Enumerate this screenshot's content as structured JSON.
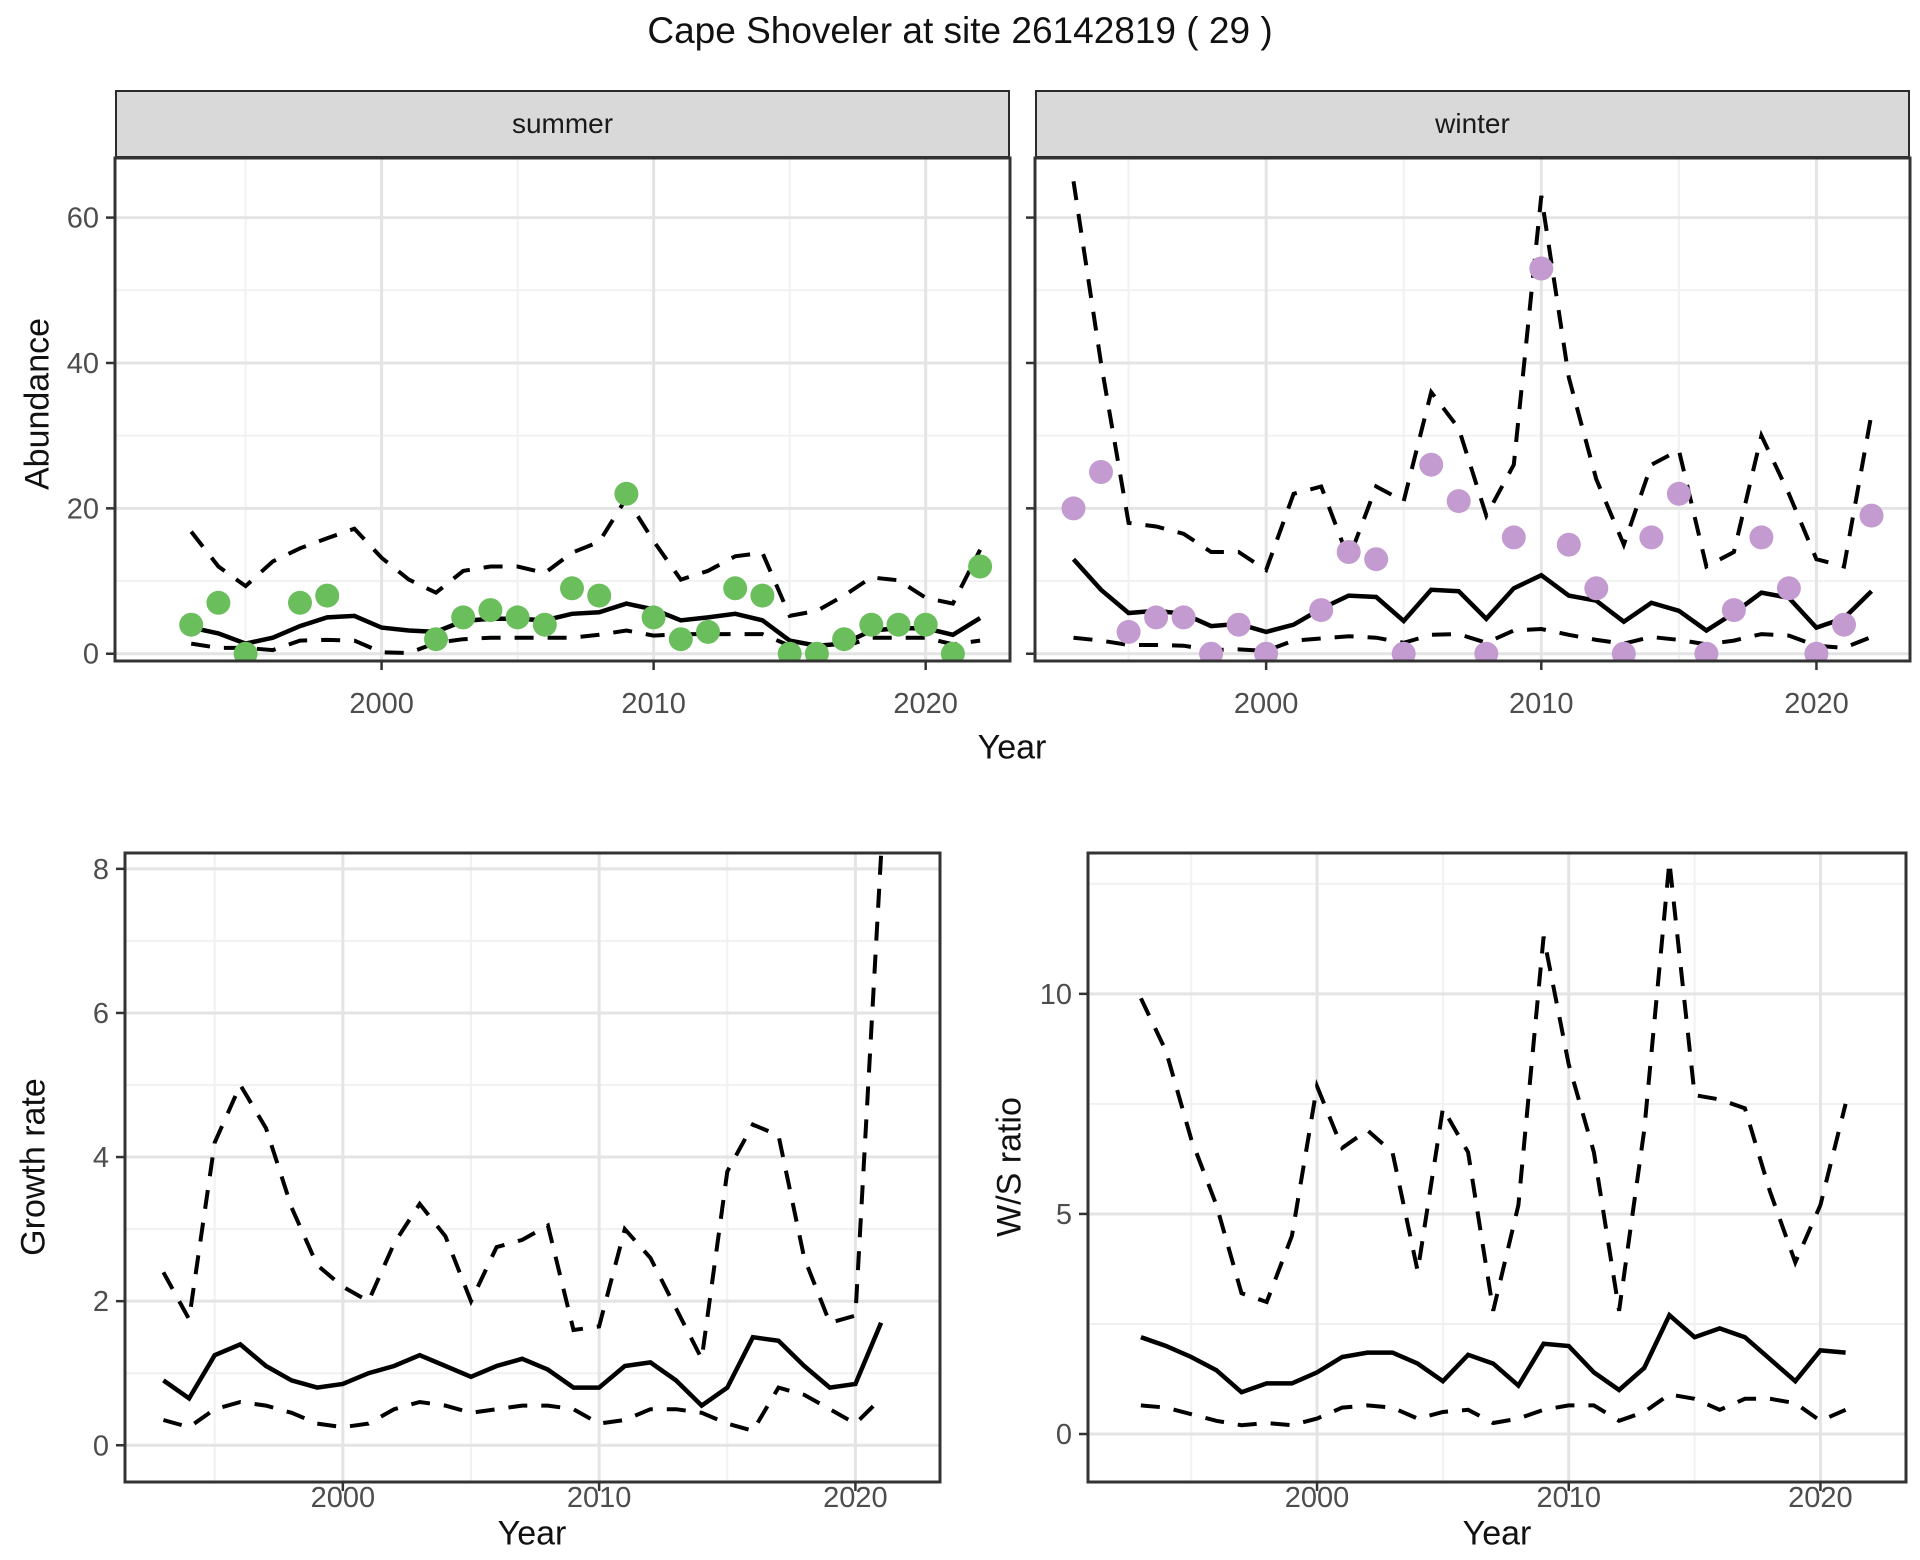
{
  "title": "Cape Shoveler at site 26142819 ( 29 )",
  "colors": {
    "summer_point": "#6BBE5C",
    "winter_point": "#C49BD0",
    "line": "#000000",
    "strip_bg": "#D9D9D9",
    "panel_border": "#333333",
    "grid_major": "#E4E4E4",
    "grid_minor": "#F1F1F1",
    "tick_text": "#4D4D4D"
  },
  "shared": {
    "top_xlabel": "Year"
  },
  "chart_data": [
    {
      "id": "abundance-summer",
      "type": "line",
      "facet_label": "summer",
      "ylabel": "Abundance",
      "xlabel": "Year",
      "x_ticks": [
        2000,
        2010,
        2020
      ],
      "x_minor": [
        1995,
        2005,
        2015
      ],
      "y_ticks": [
        0,
        20,
        40,
        60
      ],
      "y_minor": [
        10,
        30,
        50
      ],
      "xlim": [
        1990.2,
        2023.1
      ],
      "ylim": [
        -1.0,
        68.2
      ],
      "points": {
        "years": [
          1993,
          1994,
          1995,
          1997,
          1998,
          2002,
          2003,
          2004,
          2005,
          2006,
          2007,
          2008,
          2009,
          2010,
          2011,
          2012,
          2013,
          2014,
          2015,
          2016,
          2017,
          2018,
          2019,
          2020,
          2021,
          2022
        ],
        "values": [
          4,
          7,
          0,
          7,
          8,
          2,
          5,
          6,
          5,
          4,
          9,
          8,
          22,
          5,
          2,
          3,
          9,
          8,
          0,
          0,
          2,
          4,
          4,
          4,
          0,
          12
        ]
      },
      "fit": {
        "years": [
          1993,
          1994,
          1995,
          1996,
          1997,
          1998,
          1999,
          2000,
          2001,
          2002,
          2003,
          2004,
          2005,
          2006,
          2007,
          2008,
          2009,
          2010,
          2011,
          2012,
          2013,
          2014,
          2015,
          2016,
          2017,
          2018,
          2019,
          2020,
          2021,
          2022
        ],
        "values": [
          3.6,
          2.8,
          1.4,
          2.2,
          3.8,
          5.0,
          5.2,
          3.6,
          3.2,
          3.0,
          4.5,
          4.8,
          4.8,
          4.6,
          5.5,
          5.7,
          6.9,
          6.1,
          4.6,
          5.0,
          5.5,
          4.6,
          1.8,
          1.1,
          1.4,
          3.2,
          3.5,
          3.5,
          2.6,
          4.9
        ]
      },
      "upper": {
        "years": [
          1993,
          1994,
          1995,
          1996,
          1997,
          1998,
          1999,
          2000,
          2001,
          2002,
          2003,
          2004,
          2005,
          2006,
          2007,
          2008,
          2009,
          2010,
          2011,
          2012,
          2013,
          2014,
          2015,
          2016,
          2017,
          2018,
          2019,
          2020,
          2021,
          2022
        ],
        "values": [
          16.8,
          12,
          9.3,
          12.7,
          14.5,
          15.9,
          17.2,
          13.2,
          10.2,
          8.4,
          11.4,
          12,
          12,
          11.1,
          13.9,
          15.4,
          21.4,
          15.5,
          10.2,
          11.4,
          13.4,
          13.9,
          5.2,
          5.9,
          8.0,
          10.5,
          10.1,
          7.7,
          6.9,
          14.3
        ]
      },
      "lower": {
        "years": [
          1993,
          1994,
          1995,
          1996,
          1997,
          1998,
          1999,
          2000,
          2001,
          2002,
          2003,
          2004,
          2005,
          2006,
          2007,
          2008,
          2009,
          2010,
          2011,
          2012,
          2013,
          2014,
          2015,
          2016,
          2017,
          2018,
          2019,
          2020,
          2021,
          2022
        ],
        "values": [
          1.4,
          0.8,
          0.8,
          0.5,
          1.8,
          1.9,
          1.8,
          0.2,
          0.1,
          1.5,
          2.0,
          2.2,
          2.2,
          2.2,
          2.2,
          2.6,
          3.2,
          2.5,
          2.7,
          2.7,
          2.7,
          2.7,
          1.1,
          0.8,
          1.0,
          2.2,
          2.2,
          2.2,
          1.3,
          1.8
        ]
      }
    },
    {
      "id": "abundance-winter",
      "type": "line",
      "facet_label": "winter",
      "ylabel": "Abundance",
      "xlabel": "Year",
      "x_ticks": [
        2000,
        2010,
        2020
      ],
      "x_minor": [
        1995,
        2005,
        2015
      ],
      "y_ticks": [
        0,
        20,
        40,
        60
      ],
      "y_minor": [
        10,
        30,
        50
      ],
      "xlim": [
        1991.6,
        2023.4
      ],
      "ylim": [
        -1.0,
        68.2
      ],
      "points": {
        "years": [
          1993,
          1994,
          1995,
          1996,
          1997,
          1998,
          1999,
          2000,
          2002,
          2003,
          2004,
          2005,
          2006,
          2007,
          2008,
          2009,
          2010,
          2011,
          2012,
          2013,
          2014,
          2015,
          2016,
          2017,
          2018,
          2019,
          2020,
          2021,
          2022
        ],
        "values": [
          20,
          25,
          3,
          5,
          5,
          0,
          4,
          0,
          6,
          14,
          13,
          0,
          26,
          21,
          0,
          16,
          53,
          15,
          9,
          0,
          16,
          22,
          0,
          6,
          16,
          9,
          0,
          4,
          19
        ]
      },
      "fit": {
        "years": [
          1993,
          1994,
          1995,
          1996,
          1997,
          1998,
          1999,
          2000,
          2001,
          2002,
          2003,
          2004,
          2005,
          2006,
          2007,
          2008,
          2009,
          2010,
          2011,
          2012,
          2013,
          2014,
          2015,
          2016,
          2017,
          2018,
          2019,
          2020,
          2021,
          2022
        ],
        "values": [
          13,
          8.8,
          5.6,
          5.9,
          5.5,
          3.8,
          4.1,
          3.0,
          4.0,
          6.2,
          8.0,
          7.8,
          4.5,
          8.8,
          8.6,
          4.8,
          9.0,
          10.8,
          8.0,
          7.3,
          4.4,
          7.0,
          5.9,
          3.2,
          5.6,
          8.4,
          7.7,
          3.6,
          4.9,
          8.6
        ]
      },
      "upper": {
        "years": [
          1993,
          1994,
          1995,
          1996,
          1997,
          1998,
          1999,
          2000,
          2001,
          2002,
          2003,
          2004,
          2005,
          2006,
          2007,
          2008,
          2009,
          2010,
          2011,
          2012,
          2013,
          2014,
          2015,
          2016,
          2017,
          2018,
          2019,
          2020,
          2021,
          2022
        ],
        "values": [
          65,
          40,
          18,
          17.5,
          16.5,
          14,
          14,
          11.5,
          22,
          23,
          13,
          23,
          21,
          36,
          31,
          19,
          26,
          63,
          38,
          24,
          15,
          26,
          28,
          12,
          14,
          30,
          22,
          13,
          12,
          33
        ]
      },
      "lower": {
        "years": [
          1993,
          1994,
          1995,
          1996,
          1997,
          1998,
          1999,
          2000,
          2001,
          2002,
          2003,
          2004,
          2005,
          2006,
          2007,
          2008,
          2009,
          2010,
          2011,
          2012,
          2013,
          2014,
          2015,
          2016,
          2017,
          2018,
          2019,
          2020,
          2021,
          2022
        ],
        "values": [
          2.2,
          1.8,
          1.2,
          1.2,
          1.1,
          0.5,
          0.6,
          0.4,
          1.8,
          2.1,
          2.4,
          2.2,
          1.5,
          2.6,
          2.7,
          1.5,
          3.2,
          3.4,
          2.6,
          1.9,
          1.4,
          2.3,
          1.9,
          1.3,
          1.8,
          2.7,
          2.5,
          1.1,
          0.8,
          2.3
        ]
      }
    },
    {
      "id": "growth-rate",
      "type": "line",
      "facet_label": "",
      "ylabel": "Growth rate",
      "xlabel": "Year",
      "x_ticks": [
        2000,
        2010,
        2020
      ],
      "x_minor": [
        1995,
        2005,
        2015
      ],
      "y_ticks": [
        0,
        2,
        4,
        6,
        8
      ],
      "y_minor": [
        1,
        3,
        5,
        7
      ],
      "xlim": [
        1991.5,
        2023.3
      ],
      "ylim": [
        -0.51,
        8.22
      ],
      "points": {
        "years": [],
        "values": []
      },
      "fit": {
        "years": [
          1993,
          1994,
          1995,
          1996,
          1997,
          1998,
          1999,
          2000,
          2001,
          2002,
          2003,
          2004,
          2005,
          2006,
          2007,
          2008,
          2009,
          2010,
          2011,
          2012,
          2013,
          2014,
          2015,
          2016,
          2017,
          2018,
          2019,
          2020,
          2021
        ],
        "values": [
          0.9,
          0.65,
          1.25,
          1.4,
          1.1,
          0.9,
          0.8,
          0.85,
          1.0,
          1.1,
          1.25,
          1.1,
          0.95,
          1.1,
          1.2,
          1.05,
          0.8,
          0.8,
          1.1,
          1.15,
          0.9,
          0.55,
          0.8,
          1.5,
          1.45,
          1.1,
          0.8,
          0.85,
          1.7
        ]
      },
      "upper": {
        "years": [
          1993,
          1994,
          1995,
          1996,
          1997,
          1998,
          1999,
          2000,
          2001,
          2002,
          2003,
          2004,
          2005,
          2006,
          2007,
          2008,
          2009,
          2010,
          2011,
          2012,
          2013,
          2014,
          2015,
          2016,
          2017,
          2018,
          2019,
          2020,
          2021
        ],
        "values": [
          2.4,
          1.75,
          4.2,
          5.0,
          4.4,
          3.3,
          2.5,
          2.2,
          2.0,
          2.8,
          3.35,
          2.9,
          2.0,
          2.75,
          2.85,
          3.05,
          1.6,
          1.65,
          3.0,
          2.6,
          1.9,
          1.2,
          3.8,
          4.45,
          4.3,
          2.6,
          1.7,
          1.8,
          8.2
        ]
      },
      "lower": {
        "years": [
          1993,
          1994,
          1995,
          1996,
          1997,
          1998,
          1999,
          2000,
          2001,
          2002,
          2003,
          2004,
          2005,
          2006,
          2007,
          2008,
          2009,
          2010,
          2011,
          2012,
          2013,
          2014,
          2015,
          2016,
          2017,
          2018,
          2019,
          2020,
          2021
        ],
        "values": [
          0.35,
          0.25,
          0.5,
          0.6,
          0.55,
          0.45,
          0.3,
          0.25,
          0.3,
          0.5,
          0.6,
          0.55,
          0.45,
          0.5,
          0.55,
          0.55,
          0.5,
          0.3,
          0.35,
          0.5,
          0.5,
          0.45,
          0.3,
          0.2,
          0.8,
          0.7,
          0.5,
          0.3,
          0.65
        ]
      }
    },
    {
      "id": "ws-ratio",
      "type": "line",
      "facet_label": "",
      "ylabel": "W/S ratio",
      "xlabel": "Year",
      "x_ticks": [
        2000,
        2010,
        2020
      ],
      "x_minor": [
        1995,
        2005,
        2015
      ],
      "y_ticks": [
        0,
        5,
        10
      ],
      "y_minor": [
        2.5,
        7.5,
        12.5
      ],
      "xlim": [
        1990.9,
        2023.4
      ],
      "ylim": [
        -1.09,
        13.2
      ],
      "points": {
        "years": [],
        "values": []
      },
      "fit": {
        "years": [
          1993,
          1994,
          1995,
          1996,
          1997,
          1998,
          1999,
          2000,
          2001,
          2002,
          2003,
          2004,
          2005,
          2006,
          2007,
          2008,
          2009,
          2010,
          2011,
          2012,
          2013,
          2014,
          2015,
          2016,
          2017,
          2018,
          2019,
          2020,
          2021
        ],
        "values": [
          2.2,
          2.0,
          1.75,
          1.45,
          0.95,
          1.15,
          1.15,
          1.4,
          1.75,
          1.85,
          1.85,
          1.6,
          1.2,
          1.8,
          1.6,
          1.1,
          2.05,
          2.0,
          1.4,
          1.0,
          1.5,
          2.7,
          2.2,
          2.4,
          2.2,
          1.7,
          1.2,
          1.9,
          1.85
        ]
      },
      "upper": {
        "years": [
          1993,
          1994,
          1995,
          1996,
          1997,
          1998,
          1999,
          2000,
          2001,
          2002,
          2003,
          2004,
          2005,
          2006,
          2007,
          2008,
          2009,
          2010,
          2011,
          2012,
          2013,
          2014,
          2015,
          2016,
          2017,
          2018,
          2019,
          2020,
          2021
        ],
        "values": [
          9.9,
          8.7,
          6.7,
          5.2,
          3.2,
          3.0,
          4.5,
          7.9,
          6.5,
          6.9,
          6.4,
          3.7,
          7.4,
          6.4,
          2.8,
          5.2,
          11.3,
          8.4,
          6.4,
          2.8,
          6.9,
          13.0,
          7.7,
          7.6,
          7.4,
          5.5,
          3.9,
          5.2,
          7.5
        ]
      },
      "lower": {
        "years": [
          1993,
          1994,
          1995,
          1996,
          1997,
          1998,
          1999,
          2000,
          2001,
          2002,
          2003,
          2004,
          2005,
          2006,
          2007,
          2008,
          2009,
          2010,
          2011,
          2012,
          2013,
          2014,
          2015,
          2016,
          2017,
          2018,
          2019,
          2020,
          2021
        ],
        "values": [
          0.65,
          0.6,
          0.45,
          0.3,
          0.2,
          0.25,
          0.2,
          0.35,
          0.6,
          0.65,
          0.6,
          0.35,
          0.5,
          0.55,
          0.25,
          0.35,
          0.55,
          0.65,
          0.65,
          0.3,
          0.5,
          0.9,
          0.8,
          0.55,
          0.8,
          0.8,
          0.7,
          0.3,
          0.55
        ]
      }
    }
  ]
}
